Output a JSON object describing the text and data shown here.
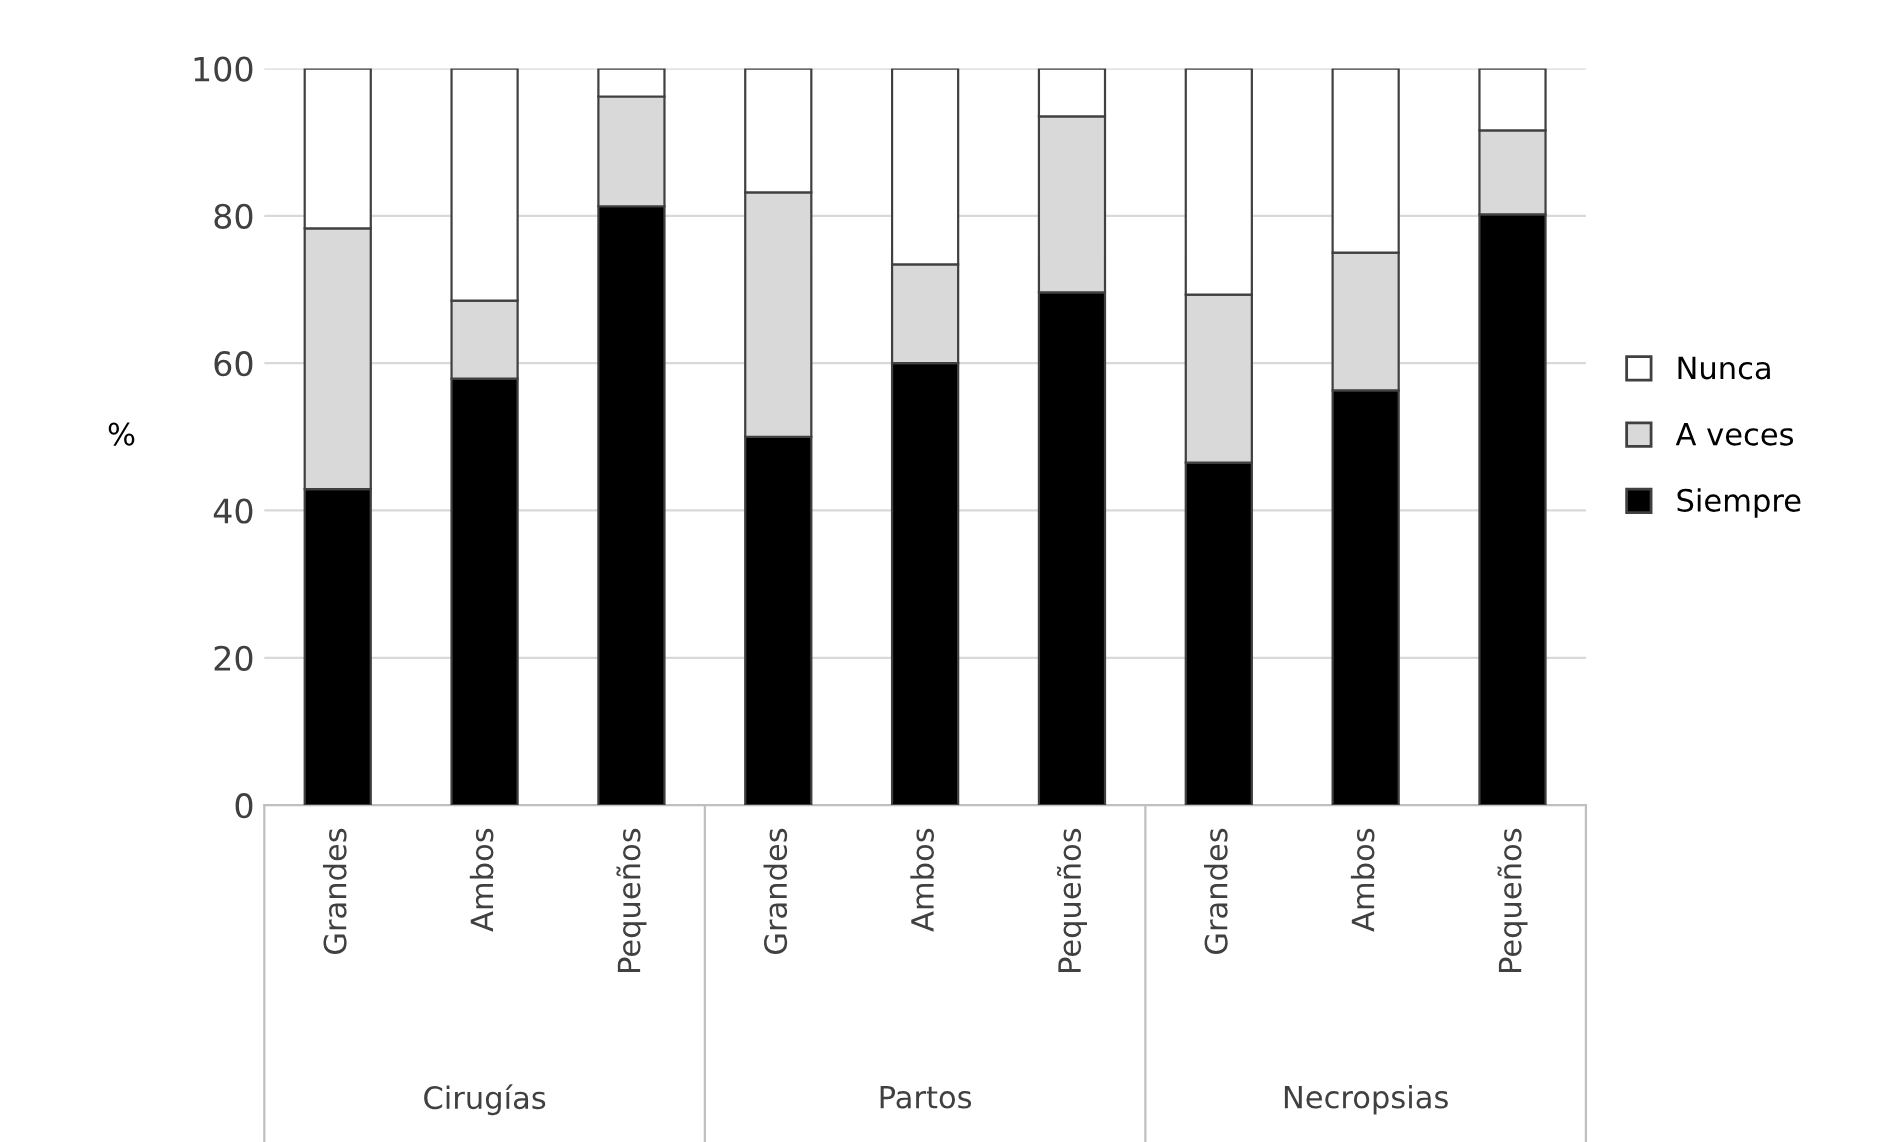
{
  "chart_data": {
    "type": "bar",
    "stacked": true,
    "ylabel": "%",
    "categories": [
      "Grandes",
      "Ambos",
      "Pequeños",
      "Grandes",
      "Ambos",
      "Pequeños",
      "Grandes",
      "Ambos",
      "Pequeños"
    ],
    "series": [
      {
        "name": "Siempre",
        "color": "#000000",
        "values": [
          42.9,
          57.9,
          81.3,
          50.0,
          60.0,
          69.6,
          46.5,
          56.3,
          80.2
        ]
      },
      {
        "name": "A veces",
        "color": "#d9d9d9",
        "values": [
          35.4,
          10.6,
          14.9,
          33.2,
          13.4,
          23.9,
          22.8,
          18.7,
          11.4
        ]
      },
      {
        "name": "Nunca",
        "color": "#ffffff",
        "values": [
          21.7,
          31.5,
          3.8,
          16.8,
          26.6,
          6.5,
          30.7,
          25.0,
          8.4
        ]
      }
    ],
    "annotations": [
      "Cirugías",
      "Partos",
      "Necropsias"
    ],
    "ylim": [
      0,
      100
    ],
    "yticks": [
      0,
      20,
      40,
      60,
      80,
      100
    ],
    "grid": "y",
    "legend": "right"
  }
}
